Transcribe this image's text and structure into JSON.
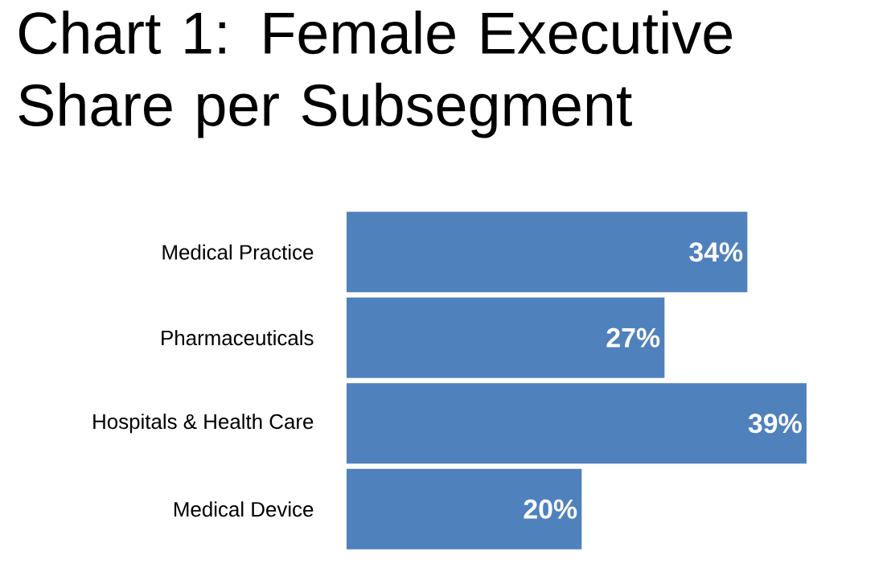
{
  "chart_data": {
    "type": "bar",
    "orientation": "horizontal",
    "title": "Chart 1: Female Executive Share per Subsegment",
    "categories": [
      "Medical Practice",
      "Pharmaceuticals",
      "Hospitals & Health Care",
      "Medical Device"
    ],
    "values": [
      34,
      27,
      39,
      20
    ],
    "value_labels": [
      "34%",
      "27%",
      "39%",
      "20%"
    ],
    "color": "#4f81bd"
  }
}
